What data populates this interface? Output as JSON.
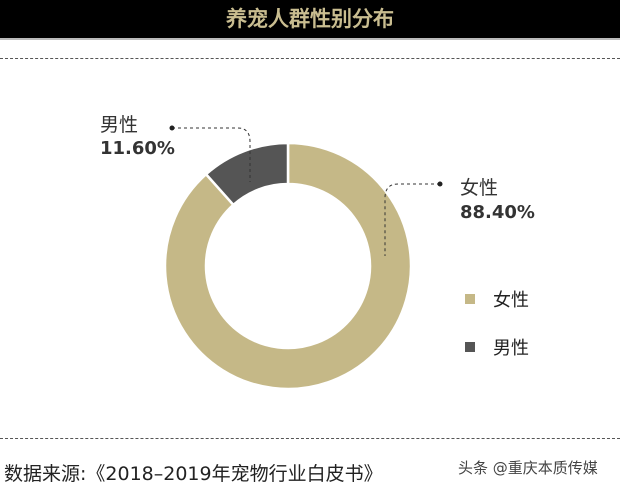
{
  "chart_data": {
    "type": "pie",
    "title": "养宠人群性别分布",
    "categories": [
      "女性",
      "男性"
    ],
    "values": [
      88.4,
      11.6
    ],
    "value_labels": [
      "88.40%",
      "11.60%"
    ],
    "colors": [
      "#c5b887",
      "#555555"
    ],
    "donut": true,
    "legend": "right"
  },
  "source": "数据来源:《2018–2019年宠物行业白皮书》",
  "watermark": "头条 @重庆本质传媒"
}
